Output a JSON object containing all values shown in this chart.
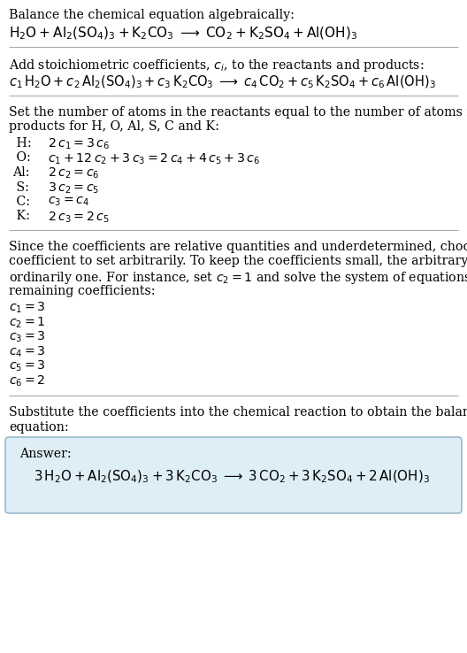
{
  "bg_color": "#ffffff",
  "text_color": "#000000",
  "answer_box_facecolor": "#ddeef6",
  "answer_box_edgecolor": "#99bbcc",
  "divider_color": "#aaaaaa",
  "sec1_header": "Balance the chemical equation algebraically:",
  "sec1_eq": "$\\mathrm{H_2O + Al_2(SO_4)_3 + K_2CO_3 \\;\\longrightarrow\\; CO_2 + K_2SO_4 + Al(OH)_3}$",
  "sec2_header": "Add stoichiometric coefficients, $c_i$, to the reactants and products:",
  "sec2_eq": "$c_1\\,\\mathrm{H_2O} + c_2\\,\\mathrm{Al_2(SO_4)_3} + c_3\\,\\mathrm{K_2CO_3} \\;\\longrightarrow\\; c_4\\,\\mathrm{CO_2} + c_5\\,\\mathrm{K_2SO_4} + c_6\\,\\mathrm{Al(OH)_3}$",
  "sec3_header_line1": "Set the number of atoms in the reactants equal to the number of atoms in the",
  "sec3_header_line2": "products for H, O, Al, S, C and K:",
  "sec3_rows": [
    {
      "label": " H:",
      "eq": "$2\\,c_1 = 3\\,c_6$"
    },
    {
      "label": " O:",
      "eq": "$c_1 + 12\\,c_2 + 3\\,c_3 = 2\\,c_4 + 4\\,c_5 + 3\\,c_6$"
    },
    {
      "label": "Al:",
      "eq": "$2\\,c_2 = c_6$"
    },
    {
      "label": " S:",
      "eq": "$3\\,c_2 = c_5$"
    },
    {
      "label": " C:",
      "eq": "$c_3 = c_4$"
    },
    {
      "label": " K:",
      "eq": "$2\\,c_3 = 2\\,c_5$"
    }
  ],
  "sec4_lines": [
    "Since the coefficients are relative quantities and underdetermined, choose a",
    "coefficient to set arbitrarily. To keep the coefficients small, the arbitrary value is",
    "ordinarily one. For instance, set $c_2 = 1$ and solve the system of equations for the",
    "remaining coefficients:"
  ],
  "sec4_solutions": [
    "$c_1 = 3$",
    "$c_2 = 1$",
    "$c_3 = 3$",
    "$c_4 = 3$",
    "$c_5 = 3$",
    "$c_6 = 2$"
  ],
  "sec5_line1": "Substitute the coefficients into the chemical reaction to obtain the balanced",
  "sec5_line2": "equation:",
  "answer_label": "Answer:",
  "answer_eq": "$3\\,\\mathrm{H_2O} + \\mathrm{Al_2(SO_4)_3} + 3\\,\\mathrm{K_2CO_3} \\;\\longrightarrow\\; 3\\,\\mathrm{CO_2} + 3\\,\\mathrm{K_2SO_4} + 2\\,\\mathrm{Al(OH)_3}$"
}
